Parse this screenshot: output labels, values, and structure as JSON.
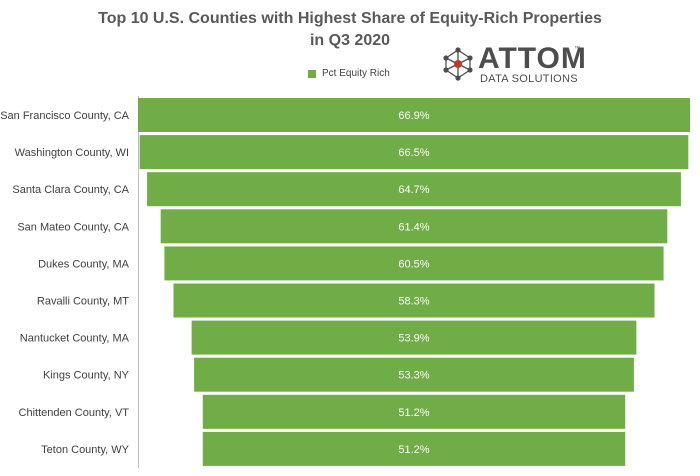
{
  "chart_data": {
    "type": "bar",
    "orientation": "horizontal",
    "layout": "centered",
    "title": "Top 10 U.S. Counties with Highest Share of Equity-Rich Properties in Q3 2020",
    "title_lines": [
      "Top 10 U.S. Counties with Highest Share of Equity-Rich Properties",
      "in Q3 2020"
    ],
    "categories": [
      "San Francisco County, CA",
      "Washington County, WI",
      "Santa Clara County, CA",
      "San Mateo County, CA",
      "Dukes County, MA",
      "Ravalli County, MT",
      "Nantucket County, MA",
      "Kings County, NY",
      "Chittenden County, VT",
      "Teton County, WY"
    ],
    "series": [
      {
        "name": "Pct Equity Rich",
        "values": [
          66.9,
          66.5,
          64.7,
          61.4,
          60.5,
          58.3,
          53.9,
          53.3,
          51.2,
          51.2
        ],
        "data_labels": [
          "66.9%",
          "66.5%",
          "64.7%",
          "61.4%",
          "60.5%",
          "58.3%",
          "53.9%",
          "53.3%",
          "51.2%",
          "51.2%"
        ],
        "color": "#70ad47"
      }
    ],
    "legend_position": "top",
    "grid": false
  },
  "legend": {
    "label": "Pct Equity Rich"
  },
  "logo": {
    "brand": "ATTOM",
    "tm": "™",
    "sub": "DATA SOLUTIONS",
    "color": "#4d4d4d",
    "accent": "#c0392b"
  },
  "colors": {
    "bar": "#70ad47",
    "label": "#ffffff",
    "text": "#404040"
  }
}
